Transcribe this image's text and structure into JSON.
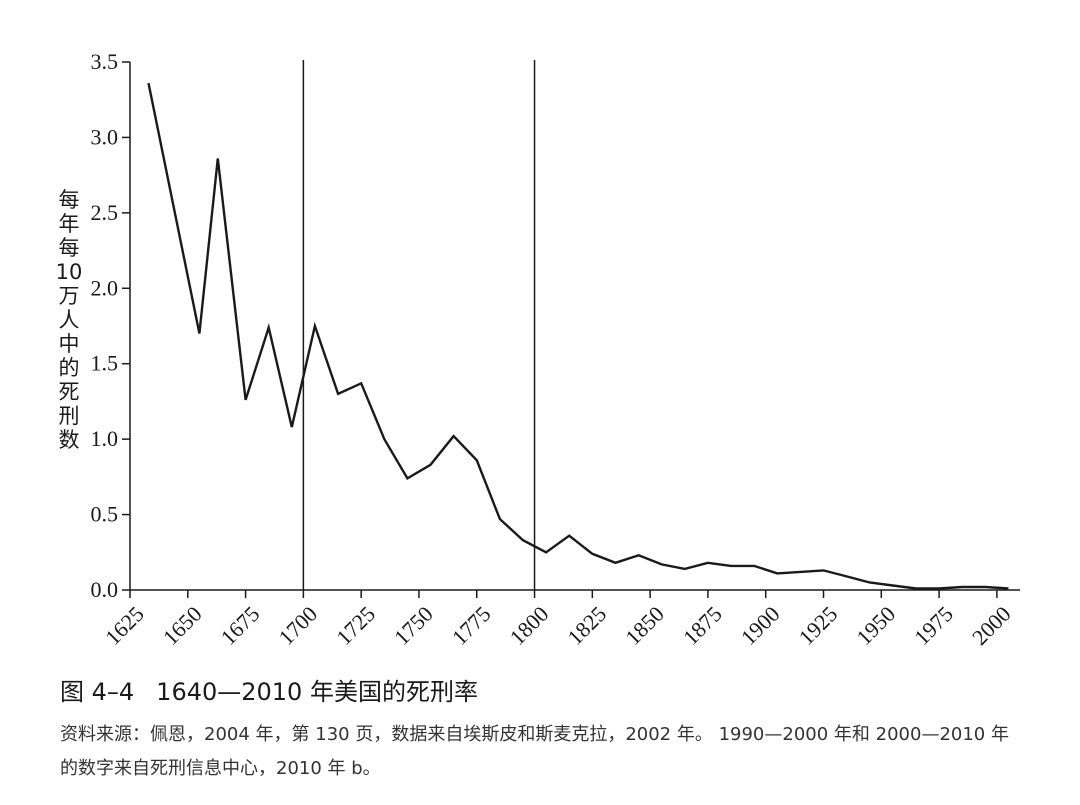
{
  "chart_data": {
    "type": "line",
    "ylabel": "每年每10万人中的死刑数",
    "xlabel": "",
    "xlim": [
      1625,
      2010
    ],
    "ylim": [
      0,
      3.5
    ],
    "x_ticks": [
      1625,
      1650,
      1675,
      1700,
      1725,
      1750,
      1775,
      1800,
      1825,
      1850,
      1875,
      1900,
      1925,
      1950,
      1975,
      2000
    ],
    "y_ticks": [
      0.0,
      0.5,
      1.0,
      1.5,
      2.0,
      2.5,
      3.0,
      3.5
    ],
    "y_tick_labels": [
      "0.0",
      "0.5",
      "1.0",
      "1.5",
      "2.0",
      "2.5",
      "3.0",
      "3.5"
    ],
    "vertical_lines": [
      1700,
      1800
    ],
    "grid": false,
    "series": [
      {
        "x": [
          1633,
          1655,
          1663,
          1675,
          1685,
          1695,
          1705,
          1715,
          1725,
          1735,
          1745,
          1755,
          1765,
          1775,
          1785,
          1795,
          1805,
          1815,
          1825,
          1835,
          1845,
          1855,
          1865,
          1875,
          1885,
          1895,
          1905,
          1915,
          1925,
          1935,
          1945,
          1955,
          1965,
          1975,
          1985,
          1995,
          2005
        ],
        "y": [
          3.36,
          1.7,
          2.86,
          1.26,
          1.74,
          1.08,
          1.75,
          1.3,
          1.37,
          1.0,
          0.74,
          0.83,
          1.02,
          0.86,
          0.47,
          0.33,
          0.25,
          0.36,
          0.24,
          0.18,
          0.23,
          0.17,
          0.14,
          0.18,
          0.16,
          0.16,
          0.11,
          0.12,
          0.13,
          0.09,
          0.05,
          0.03,
          0.01,
          0.01,
          0.02,
          0.02,
          0.01
        ]
      }
    ]
  },
  "caption": {
    "figure_number": "图 4–4",
    "title": "1640—2010 年美国的死刑率",
    "source": "资料来源：佩恩，2004 年，第 130 页，数据来自埃斯皮和斯麦克拉，2002 年。 1990—2000 年和 2000—2010 年的数字来自死刑信息中心，2010 年 b。"
  }
}
